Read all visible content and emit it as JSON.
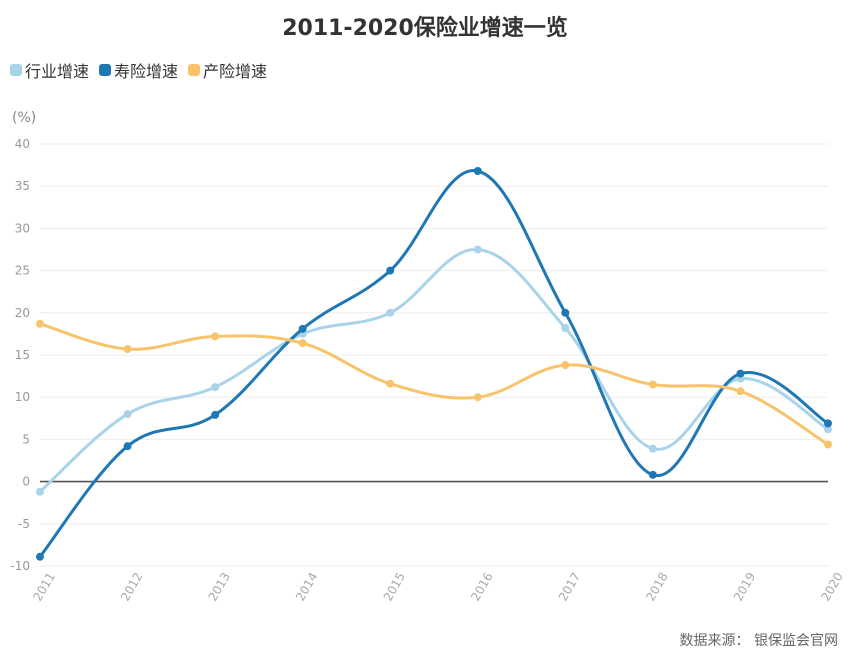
{
  "title": "2011-2020保险业增速一览",
  "unit": "(%)",
  "source": "数据来源：  银保监会官网",
  "chart_data": {
    "type": "line",
    "title": "2011-2020保险业增速一览",
    "ylabel": "(%)",
    "categories": [
      "2011",
      "2012",
      "2013",
      "2014",
      "2015",
      "2016",
      "2017",
      "2018",
      "2019",
      "2020"
    ],
    "ylim": [
      -10,
      40
    ],
    "yticks": [
      -10,
      -5,
      0,
      5,
      10,
      15,
      20,
      25,
      30,
      35,
      40
    ],
    "series": [
      {
        "name": "行业增速",
        "color": "#a9d3e9",
        "values": [
          -1.2,
          8.0,
          11.2,
          17.5,
          20.0,
          27.5,
          18.2,
          3.9,
          12.2,
          6.2
        ]
      },
      {
        "name": "寿险增速",
        "color": "#1f77b4",
        "values": [
          -8.9,
          4.2,
          7.9,
          18.1,
          25.0,
          36.8,
          20.0,
          0.8,
          12.8,
          6.9
        ]
      },
      {
        "name": "产险增速",
        "color": "#f7c46c",
        "values": [
          18.7,
          15.7,
          17.2,
          16.4,
          11.6,
          10.0,
          13.8,
          11.5,
          10.7,
          4.4
        ]
      }
    ]
  }
}
